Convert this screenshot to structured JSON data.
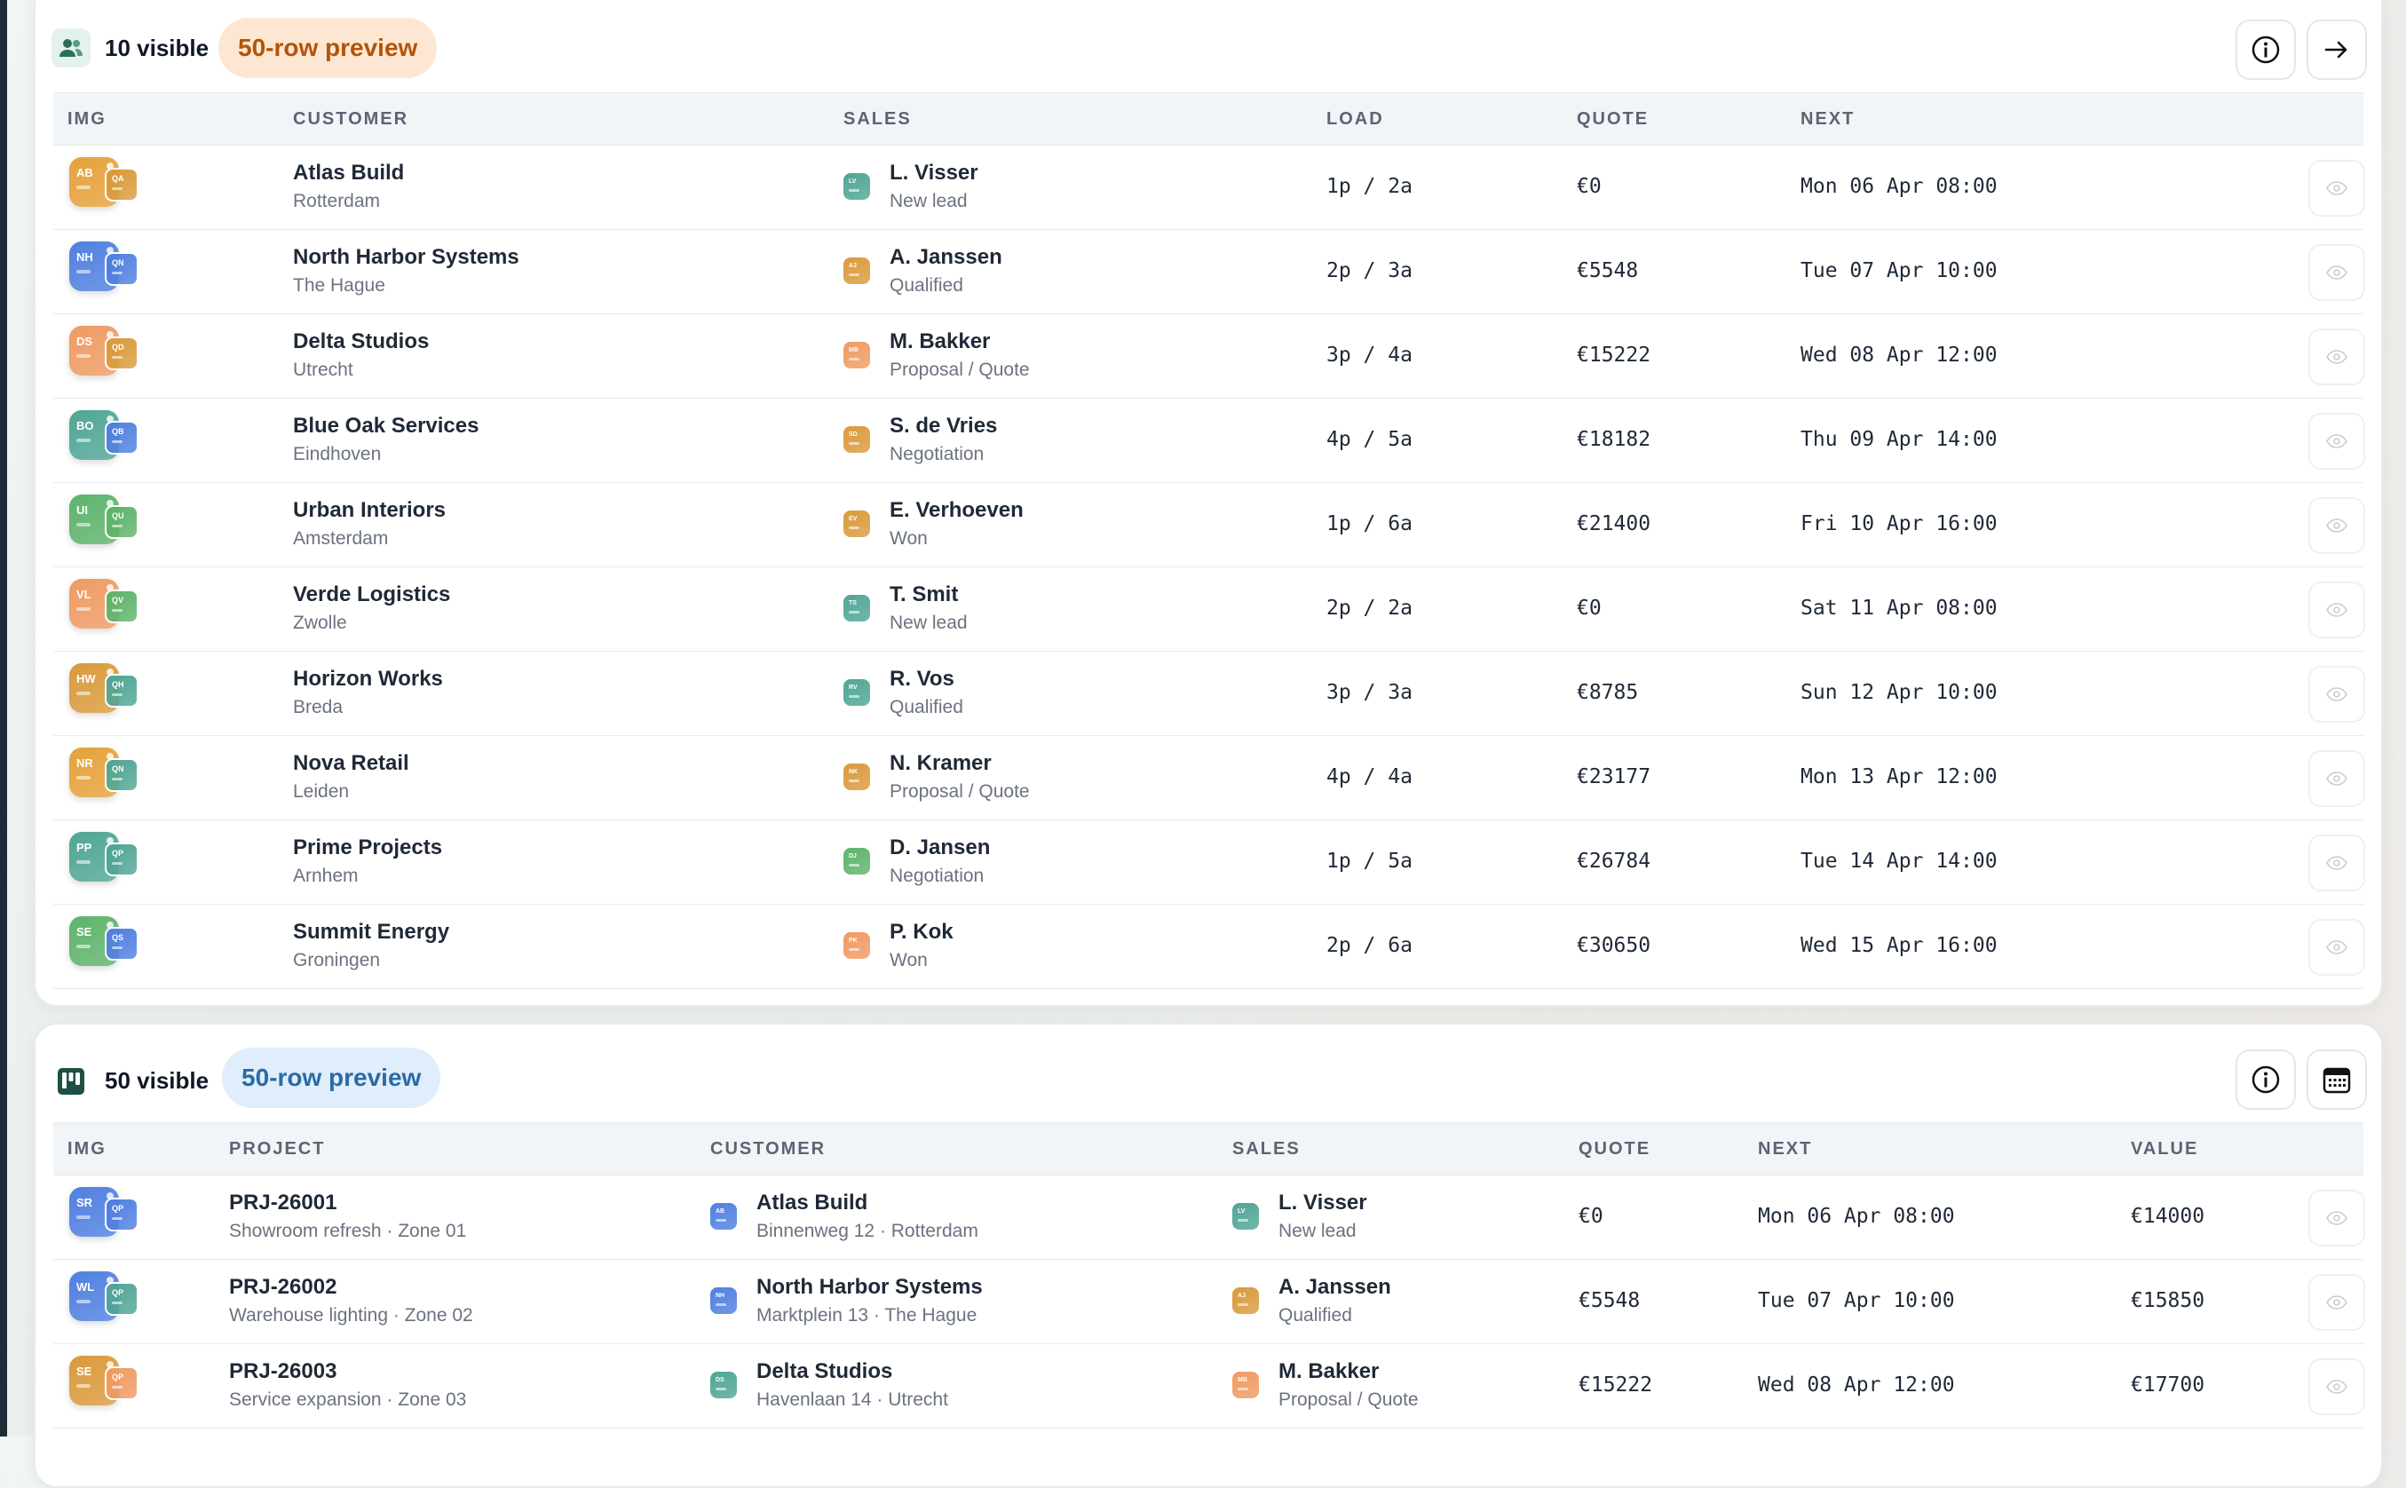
{
  "colors": {
    "orange": "#e5a13a",
    "amber": "#d99a3b",
    "peach": "#ef9a62",
    "teal": "#4fa595",
    "green": "#5db36a",
    "blue": "#4f7fe0",
    "pill_orange_bg": "#fde7d2",
    "pill_blue_bg": "#e0eefb"
  },
  "customers_panel": {
    "header_icon": "users-icon",
    "visible_count": "10 visible",
    "preview_label": "50-row preview",
    "info_icon": "info-icon",
    "action_icon": "arrow-right-icon",
    "columns": [
      "IMG",
      "CUSTOMER",
      "SALES",
      "LOAD",
      "QUOTE",
      "NEXT"
    ],
    "rows": [
      {
        "img": {
          "big": "AB",
          "big_color": "orange",
          "small": "QA",
          "small_color": "amber"
        },
        "name": "Atlas Build",
        "city": "Rotterdam",
        "rep_badge": "LV",
        "rep_color": "teal",
        "rep": "L. Visser",
        "stage": "New lead",
        "load": "1p / 2a",
        "quote": "€0",
        "next": "Mon 06 Apr 08:00"
      },
      {
        "img": {
          "big": "NH",
          "big_color": "blue",
          "small": "QN",
          "small_color": "blue"
        },
        "name": "North Harbor Systems",
        "city": "The Hague",
        "rep_badge": "AJ",
        "rep_color": "amber",
        "rep": "A. Janssen",
        "stage": "Qualified",
        "load": "2p / 3a",
        "quote": "€5548",
        "next": "Tue 07 Apr 10:00"
      },
      {
        "img": {
          "big": "DS",
          "big_color": "peach",
          "small": "QD",
          "small_color": "amber"
        },
        "name": "Delta Studios",
        "city": "Utrecht",
        "rep_badge": "MB",
        "rep_color": "peach",
        "rep": "M. Bakker",
        "stage": "Proposal / Quote",
        "load": "3p / 4a",
        "quote": "€15222",
        "next": "Wed 08 Apr 12:00"
      },
      {
        "img": {
          "big": "BO",
          "big_color": "teal",
          "small": "QB",
          "small_color": "blue"
        },
        "name": "Blue Oak Services",
        "city": "Eindhoven",
        "rep_badge": "SD",
        "rep_color": "amber",
        "rep": "S. de Vries",
        "stage": "Negotiation",
        "load": "4p / 5a",
        "quote": "€18182",
        "next": "Thu 09 Apr 14:00"
      },
      {
        "img": {
          "big": "UI",
          "big_color": "green",
          "small": "QU",
          "small_color": "green"
        },
        "name": "Urban Interiors",
        "city": "Amsterdam",
        "rep_badge": "EV",
        "rep_color": "amber",
        "rep": "E. Verhoeven",
        "stage": "Won",
        "load": "1p / 6a",
        "quote": "€21400",
        "next": "Fri 10 Apr 16:00"
      },
      {
        "img": {
          "big": "VL",
          "big_color": "peach",
          "small": "QV",
          "small_color": "green"
        },
        "name": "Verde Logistics",
        "city": "Zwolle",
        "rep_badge": "TS",
        "rep_color": "teal",
        "rep": "T. Smit",
        "stage": "New lead",
        "load": "2p / 2a",
        "quote": "€0",
        "next": "Sat 11 Apr 08:00"
      },
      {
        "img": {
          "big": "HW",
          "big_color": "amber",
          "small": "QH",
          "small_color": "teal"
        },
        "name": "Horizon Works",
        "city": "Breda",
        "rep_badge": "RV",
        "rep_color": "teal",
        "rep": "R. Vos",
        "stage": "Qualified",
        "load": "3p / 3a",
        "quote": "€8785",
        "next": "Sun 12 Apr 10:00"
      },
      {
        "img": {
          "big": "NR",
          "big_color": "orange",
          "small": "QN",
          "small_color": "teal"
        },
        "name": "Nova Retail",
        "city": "Leiden",
        "rep_badge": "NK",
        "rep_color": "amber",
        "rep": "N. Kramer",
        "stage": "Proposal / Quote",
        "load": "4p / 4a",
        "quote": "€23177",
        "next": "Mon 13 Apr 12:00"
      },
      {
        "img": {
          "big": "PP",
          "big_color": "teal",
          "small": "QP",
          "small_color": "teal"
        },
        "name": "Prime Projects",
        "city": "Arnhem",
        "rep_badge": "DJ",
        "rep_color": "green",
        "rep": "D. Jansen",
        "stage": "Negotiation",
        "load": "1p / 5a",
        "quote": "€26784",
        "next": "Tue 14 Apr 14:00"
      },
      {
        "img": {
          "big": "SE",
          "big_color": "green",
          "small": "QS",
          "small_color": "blue"
        },
        "name": "Summit Energy",
        "city": "Groningen",
        "rep_badge": "PK",
        "rep_color": "peach",
        "rep": "P. Kok",
        "stage": "Won",
        "load": "2p / 6a",
        "quote": "€30650",
        "next": "Wed 15 Apr 16:00"
      }
    ]
  },
  "projects_panel": {
    "header_icon": "kanban-icon",
    "visible_count": "50 visible",
    "preview_label": "50-row preview",
    "info_icon": "info-icon",
    "action_icon": "calendar-icon",
    "columns": [
      "IMG",
      "PROJECT",
      "CUSTOMER",
      "SALES",
      "QUOTE",
      "NEXT",
      "VALUE"
    ],
    "rows": [
      {
        "img": {
          "big": "SR",
          "big_color": "blue",
          "small": "QP",
          "small_color": "blue"
        },
        "project": "PRJ-26001",
        "desc": "Showroom refresh · Zone 01",
        "cust_badge": "AB",
        "cust_color": "blue",
        "customer": "Atlas Build",
        "address": "Binnenweg 12 · Rotterdam",
        "rep_badge": "LV",
        "rep_color": "teal",
        "rep": "L. Visser",
        "stage": "New lead",
        "quote": "€0",
        "next": "Mon 06 Apr 08:00",
        "value": "€14000"
      },
      {
        "img": {
          "big": "WL",
          "big_color": "blue",
          "small": "QP",
          "small_color": "teal"
        },
        "project": "PRJ-26002",
        "desc": "Warehouse lighting · Zone 02",
        "cust_badge": "NH",
        "cust_color": "blue",
        "customer": "North Harbor Systems",
        "address": "Marktplein 13 · The Hague",
        "rep_badge": "AJ",
        "rep_color": "amber",
        "rep": "A. Janssen",
        "stage": "Qualified",
        "quote": "€5548",
        "next": "Tue 07 Apr 10:00",
        "value": "€15850"
      },
      {
        "img": {
          "big": "SE",
          "big_color": "amber",
          "small": "QP",
          "small_color": "peach"
        },
        "project": "PRJ-26003",
        "desc": "Service expansion · Zone 03",
        "cust_badge": "DS",
        "cust_color": "teal",
        "customer": "Delta Studios",
        "address": "Havenlaan 14 · Utrecht",
        "rep_badge": "MB",
        "rep_color": "peach",
        "rep": "M. Bakker",
        "stage": "Proposal / Quote",
        "quote": "€15222",
        "next": "Wed 08 Apr 12:00",
        "value": "€17700"
      }
    ]
  }
}
